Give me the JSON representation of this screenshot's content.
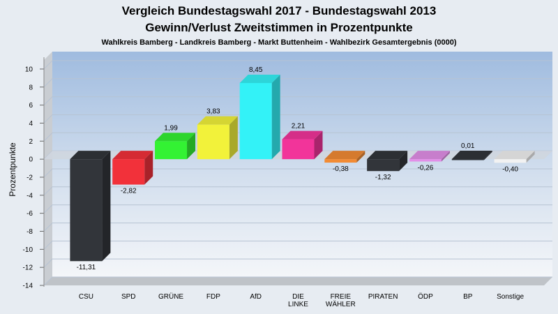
{
  "chart_data": {
    "type": "bar",
    "title": "Vergleich Bundestagswahl 2017 - Bundestagswahl 2013",
    "subtitle": "Gewinn/Verlust Zweitstimmen in Prozentpunkte",
    "subsubtitle": "Wahlkreis Bamberg - Landkreis Bamberg - Markt Buttenheim - Wahlbezirk Gesamtergebnis (0000)",
    "ylabel": "Prozentpunkte",
    "ylim": [
      -14,
      11
    ],
    "yticks": [
      10,
      8,
      6,
      4,
      2,
      0,
      -2,
      -4,
      -6,
      -8,
      -10,
      -12,
      -14
    ],
    "grid": true,
    "categories": [
      "CSU",
      "SPD",
      "GRÜNE",
      "FDP",
      "AfD",
      "DIE\nLINKE",
      "FREIE\nWÄHLER",
      "PIRATEN",
      "ÖDP",
      "BP",
      "Sonstige"
    ],
    "values": [
      -11.31,
      -2.82,
      1.99,
      3.83,
      8.45,
      2.21,
      -0.38,
      -1.32,
      -0.26,
      0.01,
      -0.4
    ],
    "value_labels": [
      "-11,31",
      "-2,82",
      "1,99",
      "3,83",
      "8,45",
      "2,21",
      "-0,38",
      "-1,32",
      "-0,26",
      "0,01",
      "-0,40"
    ],
    "colors": [
      "#32353a",
      "#f2313a",
      "#33f233",
      "#f2f23a",
      "#33f2f7",
      "#f2349a",
      "#f28b34",
      "#32353a",
      "#e28fe8",
      "#32353a",
      "#f2f2f2"
    ]
  }
}
